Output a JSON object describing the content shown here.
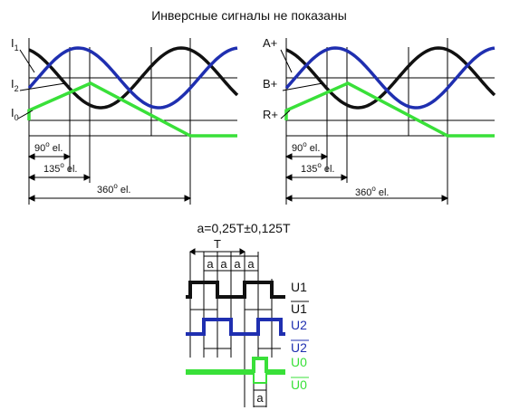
{
  "title": "Инверсные сигналы не показаны",
  "colors": {
    "channel_1": "#111111",
    "channel_2": "#1f2fb0",
    "channel_0": "#39e039",
    "grid": "#000000"
  },
  "left_panel": {
    "signal_1": {
      "base": "I",
      "sub": "1"
    },
    "signal_2": {
      "base": "I",
      "sub": "2"
    },
    "signal_0": {
      "base": "I",
      "sub": "0"
    }
  },
  "right_panel": {
    "signal_1": "A+",
    "signal_2": "B+",
    "signal_0": "R+"
  },
  "phase_labels": {
    "deg_90": {
      "num": "90",
      "sup": "o",
      "unit": " el."
    },
    "deg_135": {
      "num": "135",
      "sup": "o",
      "unit": " el."
    },
    "deg_360": {
      "num": "360",
      "sup": "o",
      "unit": " el."
    }
  },
  "timing": {
    "formula": "a=0,25T±0,125T",
    "period_label": "T",
    "quarter_label": "a",
    "zero_pulse_label": "a",
    "u1": "U1",
    "u1_inv": "U1",
    "u2": "U2",
    "u2_inv": "U2",
    "u0": "U0",
    "u0_inv": "U0"
  }
}
